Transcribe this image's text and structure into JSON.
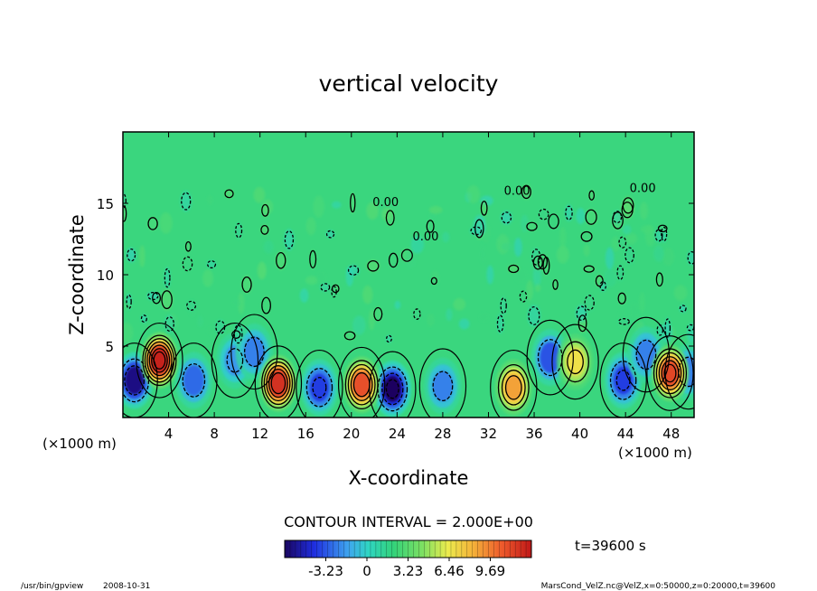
{
  "chart_data": {
    "type": "heatmap",
    "title": "vertical velocity",
    "xlabel": "X-coordinate",
    "ylabel": "Z-coordinate",
    "x_unit_left": "(×1000 m)",
    "x_unit_right": "(×1000 m)",
    "xlim": [
      0,
      50
    ],
    "ylim": [
      0,
      20
    ],
    "xticks": [
      4,
      8,
      12,
      16,
      20,
      24,
      28,
      32,
      36,
      40,
      44,
      48
    ],
    "yticks": [
      5,
      10,
      15
    ],
    "contour_interval_text": "CONTOUR INTERVAL = 2.000E+00",
    "contour_label": "0.00",
    "time_label": "t=39600 s",
    "colorbar": {
      "vmin": -6.46,
      "vmax": 12.92,
      "tick_values": [
        -3.23,
        0,
        3.23,
        6.46,
        9.69
      ],
      "tick_labels": [
        "-3.23",
        "0",
        "3.23",
        "6.46",
        "9.69"
      ]
    },
    "updrafts": [
      {
        "x": 3.2,
        "z": 4.0,
        "w": 12.5
      },
      {
        "x": 13.6,
        "z": 2.4,
        "w": 11.5
      },
      {
        "x": 20.9,
        "z": 2.3,
        "w": 10.0
      },
      {
        "x": 34.2,
        "z": 2.1,
        "w": 7.5
      },
      {
        "x": 39.6,
        "z": 3.9,
        "w": 5.0
      },
      {
        "x": 47.9,
        "z": 3.1,
        "w": 10.5
      }
    ],
    "downdrafts": [
      {
        "x": 1.0,
        "z": 2.6,
        "w": -6.0
      },
      {
        "x": 6.2,
        "z": 2.6,
        "w": -3.5
      },
      {
        "x": 9.8,
        "z": 4.0,
        "w": -2.5
      },
      {
        "x": 11.5,
        "z": 4.6,
        "w": -3.0
      },
      {
        "x": 17.2,
        "z": 2.1,
        "w": -4.5
      },
      {
        "x": 23.6,
        "z": 2.0,
        "w": -6.5
      },
      {
        "x": 28.0,
        "z": 2.2,
        "w": -3.0
      },
      {
        "x": 37.4,
        "z": 4.2,
        "w": -4.0
      },
      {
        "x": 43.8,
        "z": 2.6,
        "w": -4.5
      },
      {
        "x": 45.8,
        "z": 4.4,
        "w": -3.0
      },
      {
        "x": 49.5,
        "z": 3.2,
        "w": -3.0
      }
    ]
  },
  "footer": {
    "program": "/usr/bin/gpview",
    "date": "2008-10-31",
    "source": "MarsCond_VelZ.nc@VelZ,x=0:50000,z=0:20000,t=39600"
  }
}
